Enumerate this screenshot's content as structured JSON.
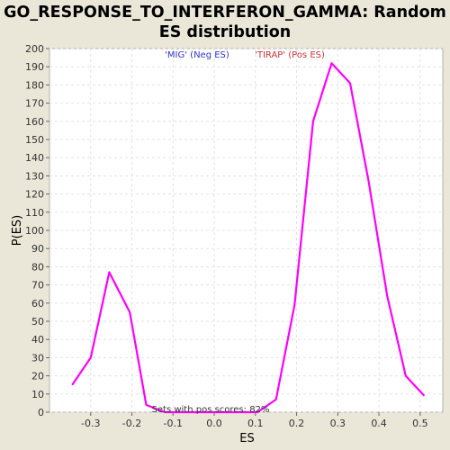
{
  "title_line1": "GO_RESPONSE_TO_INTERFERON_GAMMA: Random",
  "title_line2": "ES distribution",
  "chart_data": {
    "type": "line",
    "title": "GO_RESPONSE_TO_INTERFERON_GAMMA: Random ES distribution",
    "xlabel": "ES",
    "ylabel": "P(ES)",
    "xlim": [
      -0.4,
      0.555
    ],
    "ylim": [
      0,
      200
    ],
    "x_ticks": [
      -0.3,
      -0.2,
      -0.1,
      0.0,
      0.1,
      0.2,
      0.3,
      0.4,
      0.5
    ],
    "x_tick_labels": [
      "-0.3",
      "-0.2",
      "-0.1",
      "0.0",
      "0.1",
      "0.2",
      "0.3",
      "0.4",
      "0.5"
    ],
    "y_ticks": [
      0,
      10,
      20,
      30,
      40,
      50,
      60,
      70,
      80,
      90,
      100,
      110,
      120,
      130,
      140,
      150,
      160,
      170,
      180,
      190,
      200
    ],
    "grid": true,
    "series": [
      {
        "color": "#ff00ff",
        "x": [
          -0.345,
          -0.3,
          -0.255,
          -0.205,
          -0.165,
          -0.12,
          -0.075,
          -0.03,
          0.015,
          0.06,
          0.105,
          0.15,
          0.195,
          0.24,
          0.285,
          0.33,
          0.375,
          0.42,
          0.465,
          0.51
        ],
        "y": [
          15,
          30,
          77,
          55,
          4,
          0,
          0,
          0,
          0,
          0,
          0,
          7,
          59,
          160,
          192,
          181,
          127,
          64,
          20,
          9
        ]
      }
    ],
    "annotations": {
      "neg_label": "'MIG' (Neg ES)",
      "neg_color": "#3333cc",
      "pos_label": "'TIRAP' (Pos ES)",
      "pos_color": "#cc3333",
      "pos_score_text": "Sets with pos scores: 82%"
    }
  }
}
